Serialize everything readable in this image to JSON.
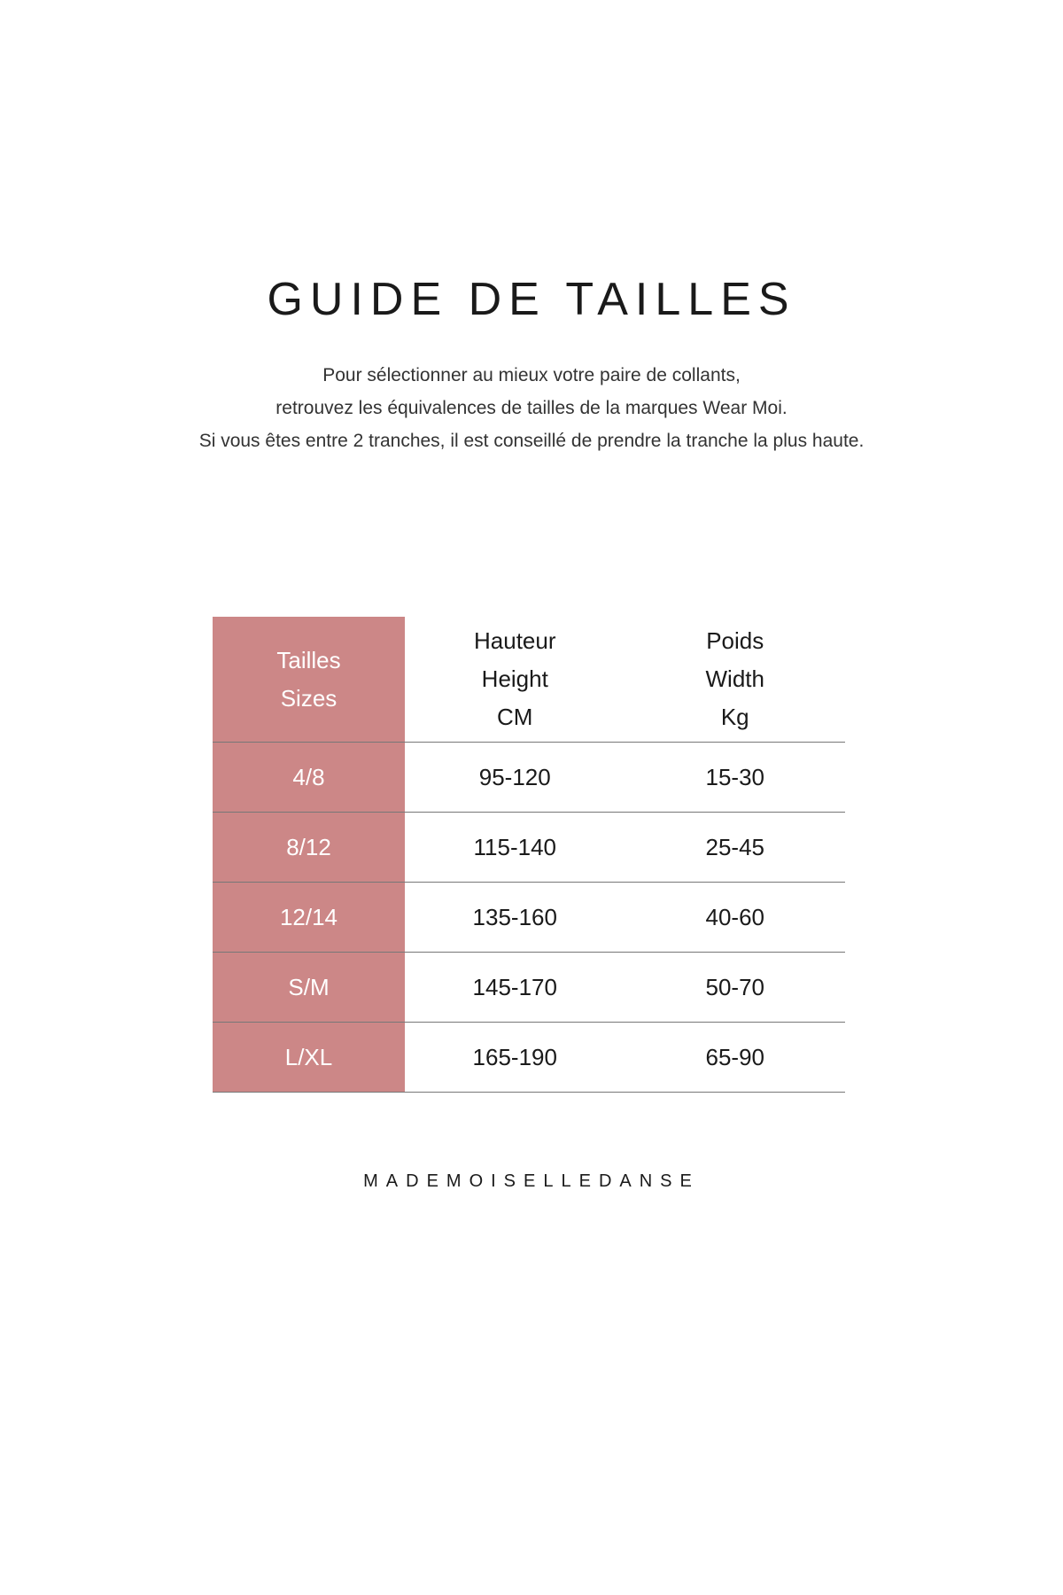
{
  "title": "GUIDE DE TAILLES",
  "intro": [
    "Pour sélectionner au mieux votre paire de collants,",
    "retrouvez les équivalences de tailles de la marques Wear Moi.",
    "Si vous êtes entre 2 tranches, il est conseillé de prendre la tranche la plus haute."
  ],
  "table": {
    "headers": {
      "size": [
        "Tailles",
        "Sizes"
      ],
      "height": [
        "Hauteur",
        "Height",
        "CM"
      ],
      "weight": [
        "Poids",
        "Width",
        "Kg"
      ]
    },
    "rows": [
      {
        "size": "4/8",
        "height": "95-120",
        "weight": "15-30"
      },
      {
        "size": "8/12",
        "height": "115-140",
        "weight": "25-45"
      },
      {
        "size": "12/14",
        "height": "135-160",
        "weight": "40-60"
      },
      {
        "size": "S/M",
        "height": "145-170",
        "weight": "50-70"
      },
      {
        "size": "L/XL",
        "height": "165-190",
        "weight": "65-90"
      }
    ]
  },
  "footer": "MADEMOISELLEDANSE",
  "colors": {
    "accent": "#cc8787",
    "rule": "#777777"
  }
}
